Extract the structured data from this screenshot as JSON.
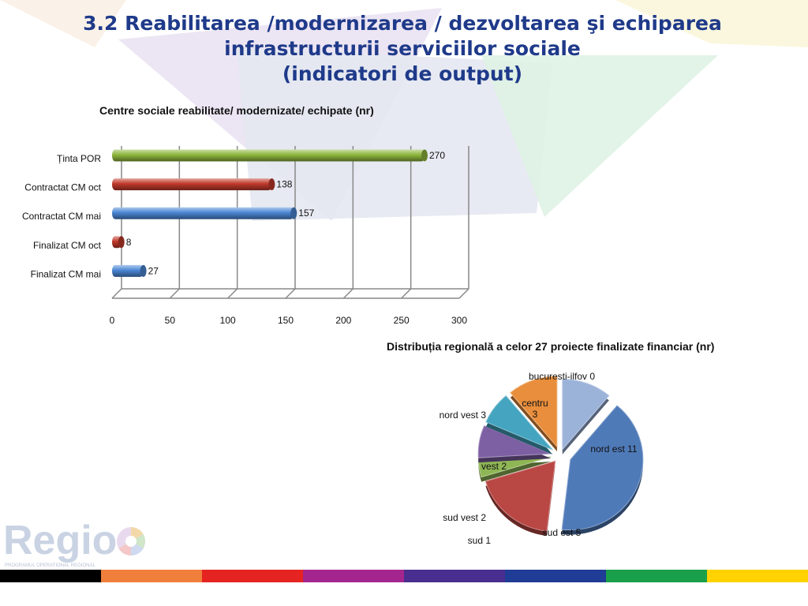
{
  "slide": {
    "title_lines": [
      "3.2 Reabilitarea /modernizarea / dezvoltarea şi echiparea",
      "infrastructurii serviciilor sociale",
      "(indicatori de output)"
    ],
    "logo_text": "Regio",
    "logo_subtitle": "PROGRAMUL OPERATIONAL REGIONAL",
    "footer_stripe_colors": [
      "#000000",
      "#f07f3c",
      "#e52421",
      "#a5258e",
      "#4a2e8f",
      "#1f3c96",
      "#1aa04a",
      "#ffd200"
    ]
  },
  "chart_data": [
    {
      "type": "bar",
      "orientation": "horizontal",
      "title": "Centre sociale reabilitate/ modernizate/ echipate (nr)",
      "categories": [
        "Ținta POR",
        "Contractat CM oct",
        "Contractat CM mai",
        "Finalizat CM oct",
        "Finalizat CM mai"
      ],
      "values": [
        270,
        138,
        157,
        8,
        27
      ],
      "colors": [
        "#8db63c",
        "#c0392b",
        "#4a86d4",
        "#c0392b",
        "#4a86d4"
      ],
      "xlim": [
        0,
        300
      ],
      "xticks": [
        0,
        50,
        100,
        150,
        200,
        250,
        300
      ],
      "grid": true,
      "xlabel": "",
      "ylabel": ""
    },
    {
      "type": "pie",
      "title": "Distribuția regională a celor 27 proiecte finalizate financiar (nr)",
      "slices": [
        {
          "name": "centru",
          "value": 3,
          "label": [
            "centru",
            "3"
          ],
          "color": "#9bb2d9"
        },
        {
          "name": "nord est",
          "value": 11,
          "label": [
            "nord est 11"
          ],
          "color": "#4f7ab8"
        },
        {
          "name": "sud est",
          "value": 5,
          "label": [
            "sud est 5"
          ],
          "color": "#b94743"
        },
        {
          "name": "sud",
          "value": 1,
          "label": [
            "sud    1"
          ],
          "color": "#8fb655"
        },
        {
          "name": "sud vest",
          "value": 2,
          "label": [
            "sud vest 2"
          ],
          "color": "#7d5fa3"
        },
        {
          "name": "vest",
          "value": 2,
          "label": [
            "vest 2"
          ],
          "color": "#45a4bf"
        },
        {
          "name": "nord vest",
          "value": 3,
          "label": [
            "nord vest 3"
          ],
          "color": "#e88e3c"
        },
        {
          "name": "bucuresti-ilfov",
          "value": 0,
          "label": [
            "bucuresti-ilfov 0"
          ],
          "color": "#9bb2d9"
        }
      ]
    }
  ]
}
